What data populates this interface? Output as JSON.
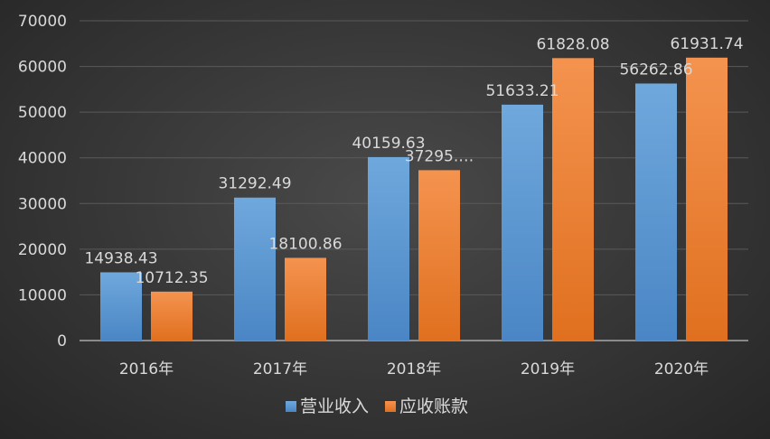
{
  "chart_data": {
    "type": "bar",
    "title": "",
    "xlabel": "",
    "ylabel": "",
    "categories": [
      "2016年",
      "2017年",
      "2018年",
      "2019年",
      "2020年"
    ],
    "ylim": [
      0,
      70000
    ],
    "yticks": [
      0,
      10000,
      20000,
      30000,
      40000,
      50000,
      60000,
      70000
    ],
    "grid": true,
    "legend": "bottom-center",
    "series": [
      {
        "name": "营业收入",
        "color": "#5b9bd5",
        "values": [
          14938.43,
          31292.49,
          40159.63,
          51633.21,
          56262.86
        ],
        "labels": [
          "14938.43",
          "31292.49",
          "40159.63",
          "51633.21",
          "56262.86"
        ]
      },
      {
        "name": "应收账款",
        "color": "#ed7d31",
        "values": [
          10712.35,
          18100.86,
          37295.0,
          61828.08,
          61931.74
        ],
        "labels": [
          "10712.35",
          "18100.86",
          "37295.…",
          "61828.08",
          "61931.74"
        ]
      }
    ]
  }
}
